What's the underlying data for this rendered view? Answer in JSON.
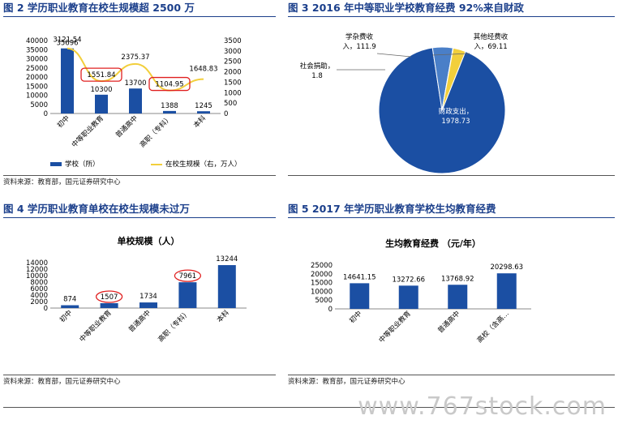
{
  "panels": {
    "p2": {
      "title": "图 2 学历职业教育在校生规模超 2500 万",
      "source": "资料来源：教育部，国元证券研究中心"
    },
    "p3": {
      "title": "图 3 2016 年中等职业学校教育经费 92%来自财政",
      "source": ""
    },
    "p4": {
      "title": "图 4 学历职业教育单校在校生规模未过万",
      "source": "资料来源：教育部，国元证券研究中心"
    },
    "p5": {
      "title": "图 5 2017 年学历职业教育学校生均教育经费",
      "source": "资料来源：教育部，国元证券研究中心"
    }
  },
  "chart_data": [
    {
      "type": "bar",
      "categories": [
        "初中",
        "中等职业教育",
        "普通高中",
        "高职（专科）",
        "本科"
      ],
      "series": [
        {
          "name": "学校（所）",
          "type": "bar",
          "axis": "left",
          "color": "#1b4fa3",
          "values": [
            35696,
            10300,
            13700,
            1388,
            1245
          ]
        },
        {
          "name": "在校生规模（右，万人）",
          "type": "line",
          "axis": "right",
          "color": "#f2cf3c",
          "values": [
            3121.54,
            1551.84,
            2375.37,
            1104.95,
            1648.83
          ]
        }
      ],
      "ylim": [
        0,
        40000
      ],
      "y_ticks": [
        0,
        5000,
        10000,
        15000,
        20000,
        25000,
        30000,
        35000,
        40000
      ],
      "y2lim": [
        0,
        3500
      ],
      "y2_ticks": [
        0,
        500,
        1000,
        1500,
        2000,
        2500,
        3000,
        3500
      ],
      "labels": {
        "bar": [
          "35696",
          "10300",
          "13700",
          "1388",
          "1245"
        ],
        "line": [
          "3121.54",
          "1551.84",
          "2375.37",
          "1104.95",
          "1648.83"
        ]
      },
      "highlighted": [
        1,
        3
      ],
      "legend_position": "bottom"
    },
    {
      "type": "pie",
      "categories": [
        "财政支出",
        "学杂费收入",
        "社会捐助",
        "其他经费收入"
      ],
      "values": [
        1978.73,
        111.9,
        1.8,
        69.11
      ],
      "labels": [
        "财政支出，\n1978.73",
        "学杂费收\n入，111.9",
        "社会捐助，\n1.8",
        "其他经费收\n入，69.11"
      ],
      "colors": [
        "#1b4fa3",
        "#4a7fc8",
        "#7ab0d8",
        "#f2cf3c"
      ]
    },
    {
      "type": "bar",
      "title": "单校规模（人）",
      "categories": [
        "初中",
        "中等职业教育",
        "普通高中",
        "高职（专科）",
        "本科"
      ],
      "values": [
        874,
        1507,
        1734,
        7961,
        13244
      ],
      "labels": [
        "874",
        "1507",
        "1734",
        "7961",
        "13244"
      ],
      "ylim": [
        0,
        14000
      ],
      "y_ticks": [
        0,
        2000,
        4000,
        6000,
        8000,
        10000,
        12000,
        14000
      ],
      "highlighted": [
        1,
        3
      ],
      "color": "#1b4fa3"
    },
    {
      "type": "bar",
      "title": "生均教育经费 （元/年）",
      "categories": [
        "初中",
        "中等职业教育",
        "普通高中",
        "高校（含高…"
      ],
      "values": [
        14641.15,
        13272.66,
        13768.92,
        20298.63
      ],
      "labels": [
        "14641.15",
        "13272.66",
        "13768.92",
        "20298.63"
      ],
      "ylim": [
        0,
        25000
      ],
      "y_ticks": [
        0,
        5000,
        10000,
        15000,
        20000,
        25000
      ],
      "color": "#1b4fa3"
    }
  ],
  "watermark": "www.767stock.com"
}
